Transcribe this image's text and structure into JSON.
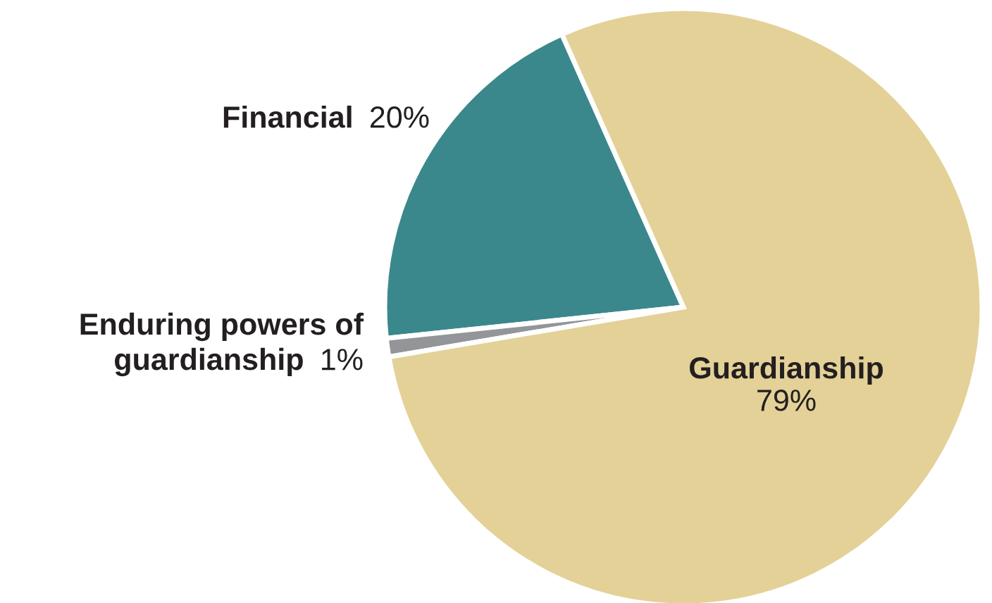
{
  "chart_data": {
    "type": "pie",
    "categories": [
      "Financial",
      "Enduring powers of guardianship",
      "Guardianship"
    ],
    "values": [
      20,
      1,
      79
    ],
    "colors": [
      "#3a888c",
      "#939598",
      "#e3d197"
    ],
    "value_labels": [
      "20%",
      "1%",
      "79%"
    ]
  }
}
